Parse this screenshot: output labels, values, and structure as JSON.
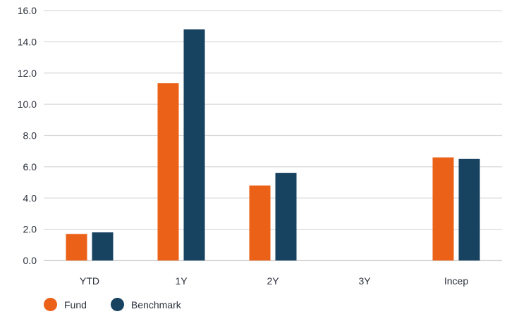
{
  "chart_data": {
    "type": "bar",
    "categories": [
      "YTD",
      "1Y",
      "2Y",
      "3Y",
      "Incep"
    ],
    "series": [
      {
        "name": "Fund",
        "color": "#ec6118",
        "values": [
          1.7,
          11.35,
          4.8,
          null,
          6.6
        ]
      },
      {
        "name": "Benchmark",
        "color": "#174260",
        "values": [
          1.8,
          14.8,
          5.6,
          null,
          6.5
        ]
      }
    ],
    "yticks": [
      "0.0",
      "2.0",
      "4.0",
      "6.0",
      "8.0",
      "10.0",
      "12.0",
      "14.0",
      "16.0"
    ],
    "ylim": [
      0,
      16
    ],
    "grid": true,
    "legend_position": "bottom-left",
    "title": "",
    "xlabel": "",
    "ylabel": ""
  }
}
